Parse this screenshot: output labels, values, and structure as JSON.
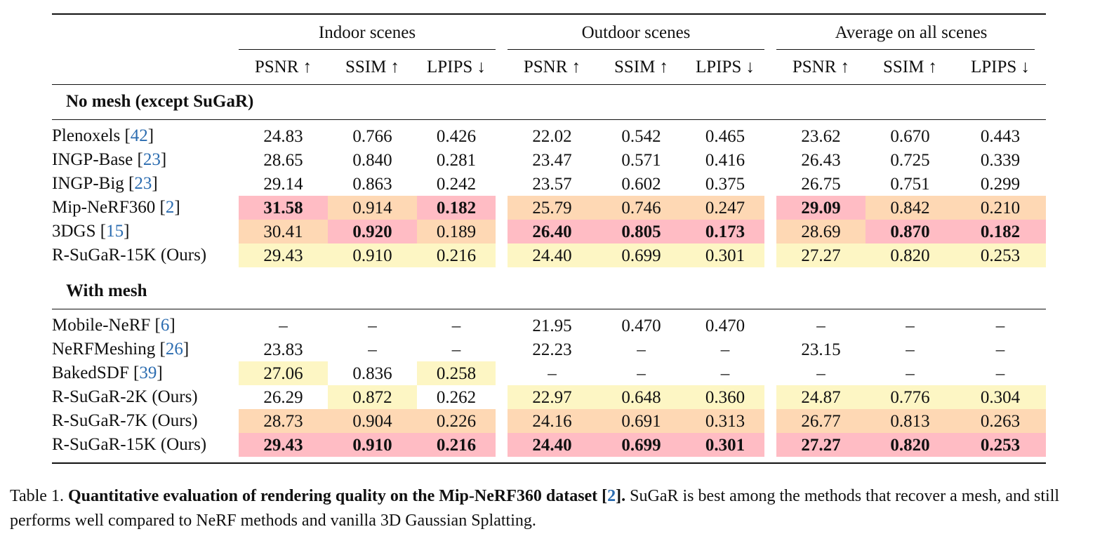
{
  "colors": {
    "best": "#ffbcc4",
    "second": "#fed8b4",
    "third": "#fdf6c4",
    "ref": "#2b6cb0"
  },
  "group_headers": [
    "Indoor scenes",
    "Outdoor scenes",
    "Average on all scenes"
  ],
  "column_headers": [
    "PSNR ↑",
    "SSIM ↑",
    "LPIPS ↓",
    "PSNR ↑",
    "SSIM ↑",
    "LPIPS ↓",
    "PSNR ↑",
    "SSIM ↑",
    "LPIPS ↓"
  ],
  "sections": [
    {
      "title": "No mesh (except SuGaR)",
      "rows": [
        {
          "name": "Plenoxels",
          "ref": "42",
          "cells": [
            {
              "v": "24.83"
            },
            {
              "v": "0.766"
            },
            {
              "v": "0.426"
            },
            {
              "v": "22.02"
            },
            {
              "v": "0.542"
            },
            {
              "v": "0.465"
            },
            {
              "v": "23.62"
            },
            {
              "v": "0.670"
            },
            {
              "v": "0.443"
            }
          ]
        },
        {
          "name": "INGP-Base",
          "ref": "23",
          "cells": [
            {
              "v": "28.65"
            },
            {
              "v": "0.840"
            },
            {
              "v": "0.281"
            },
            {
              "v": "23.47"
            },
            {
              "v": "0.571"
            },
            {
              "v": "0.416"
            },
            {
              "v": "26.43"
            },
            {
              "v": "0.725"
            },
            {
              "v": "0.339"
            }
          ]
        },
        {
          "name": "INGP-Big",
          "ref": "23",
          "cells": [
            {
              "v": "29.14"
            },
            {
              "v": "0.863"
            },
            {
              "v": "0.242"
            },
            {
              "v": "23.57"
            },
            {
              "v": "0.602"
            },
            {
              "v": "0.375"
            },
            {
              "v": "26.75"
            },
            {
              "v": "0.751"
            },
            {
              "v": "0.299"
            }
          ]
        },
        {
          "name": "Mip-NeRF360",
          "ref": "2",
          "cells": [
            {
              "v": "31.58",
              "r": 1,
              "b": true
            },
            {
              "v": "0.914",
              "r": 2
            },
            {
              "v": "0.182",
              "r": 1,
              "b": true
            },
            {
              "v": "25.79",
              "r": 2
            },
            {
              "v": "0.746",
              "r": 2
            },
            {
              "v": "0.247",
              "r": 2
            },
            {
              "v": "29.09",
              "r": 1,
              "b": true
            },
            {
              "v": "0.842",
              "r": 2
            },
            {
              "v": "0.210",
              "r": 2
            }
          ]
        },
        {
          "name": "3DGS",
          "ref": "15",
          "cells": [
            {
              "v": "30.41",
              "r": 2
            },
            {
              "v": "0.920",
              "r": 1,
              "b": true
            },
            {
              "v": "0.189",
              "r": 2
            },
            {
              "v": "26.40",
              "r": 1,
              "b": true
            },
            {
              "v": "0.805",
              "r": 1,
              "b": true
            },
            {
              "v": "0.173",
              "r": 1,
              "b": true
            },
            {
              "v": "28.69",
              "r": 2
            },
            {
              "v": "0.870",
              "r": 1,
              "b": true
            },
            {
              "v": "0.182",
              "r": 1,
              "b": true
            }
          ]
        },
        {
          "name": "R-SuGaR-15K (Ours)",
          "ref": null,
          "cells": [
            {
              "v": "29.43",
              "r": 3
            },
            {
              "v": "0.910",
              "r": 3
            },
            {
              "v": "0.216",
              "r": 3
            },
            {
              "v": "24.40",
              "r": 3
            },
            {
              "v": "0.699",
              "r": 3
            },
            {
              "v": "0.301",
              "r": 3
            },
            {
              "v": "27.27",
              "r": 3
            },
            {
              "v": "0.820",
              "r": 3
            },
            {
              "v": "0.253",
              "r": 3
            }
          ]
        }
      ]
    },
    {
      "title": "With mesh",
      "rows": [
        {
          "name": "Mobile-NeRF",
          "ref": "6",
          "cells": [
            {
              "v": "–"
            },
            {
              "v": "–"
            },
            {
              "v": "–"
            },
            {
              "v": "21.95"
            },
            {
              "v": "0.470"
            },
            {
              "v": "0.470"
            },
            {
              "v": "–"
            },
            {
              "v": "–"
            },
            {
              "v": "–"
            }
          ]
        },
        {
          "name": "NeRFMeshing",
          "ref": "26",
          "cells": [
            {
              "v": "23.83"
            },
            {
              "v": "–"
            },
            {
              "v": "–"
            },
            {
              "v": "22.23"
            },
            {
              "v": "–"
            },
            {
              "v": "–"
            },
            {
              "v": "23.15"
            },
            {
              "v": "–"
            },
            {
              "v": "–"
            }
          ]
        },
        {
          "name": "BakedSDF",
          "ref": "39",
          "cells": [
            {
              "v": "27.06",
              "r": 3
            },
            {
              "v": "0.836"
            },
            {
              "v": "0.258",
              "r": 3
            },
            {
              "v": "–"
            },
            {
              "v": "–"
            },
            {
              "v": "–"
            },
            {
              "v": "–"
            },
            {
              "v": "–"
            },
            {
              "v": "–"
            }
          ]
        },
        {
          "name": "R-SuGaR-2K (Ours)",
          "ref": null,
          "cells": [
            {
              "v": "26.29"
            },
            {
              "v": "0.872",
              "r": 3
            },
            {
              "v": "0.262"
            },
            {
              "v": "22.97",
              "r": 3
            },
            {
              "v": "0.648",
              "r": 3
            },
            {
              "v": "0.360",
              "r": 3
            },
            {
              "v": "24.87",
              "r": 3
            },
            {
              "v": "0.776",
              "r": 3
            },
            {
              "v": "0.304",
              "r": 3
            }
          ]
        },
        {
          "name": "R-SuGaR-7K (Ours)",
          "ref": null,
          "cells": [
            {
              "v": "28.73",
              "r": 2
            },
            {
              "v": "0.904",
              "r": 2
            },
            {
              "v": "0.226",
              "r": 2
            },
            {
              "v": "24.16",
              "r": 2
            },
            {
              "v": "0.691",
              "r": 2
            },
            {
              "v": "0.313",
              "r": 2
            },
            {
              "v": "26.77",
              "r": 2
            },
            {
              "v": "0.813",
              "r": 2
            },
            {
              "v": "0.263",
              "r": 2
            }
          ]
        },
        {
          "name": "R-SuGaR-15K (Ours)",
          "ref": null,
          "cells": [
            {
              "v": "29.43",
              "r": 1,
              "b": true
            },
            {
              "v": "0.910",
              "r": 1,
              "b": true
            },
            {
              "v": "0.216",
              "r": 1,
              "b": true
            },
            {
              "v": "24.40",
              "r": 1,
              "b": true
            },
            {
              "v": "0.699",
              "r": 1,
              "b": true
            },
            {
              "v": "0.301",
              "r": 1,
              "b": true
            },
            {
              "v": "27.27",
              "r": 1,
              "b": true
            },
            {
              "v": "0.820",
              "r": 1,
              "b": true
            },
            {
              "v": "0.253",
              "r": 1,
              "b": true
            }
          ]
        }
      ]
    }
  ],
  "caption": {
    "label": "Table 1.",
    "bold_text": "Quantitative evaluation of rendering quality on the Mip-NeRF360 dataset [",
    "bold_ref": "2",
    "bold_close": "].",
    "rest": "SuGaR is best among the methods that recover a mesh, and still performs well compared to NeRF methods and vanilla 3D Gaussian Splatting."
  }
}
